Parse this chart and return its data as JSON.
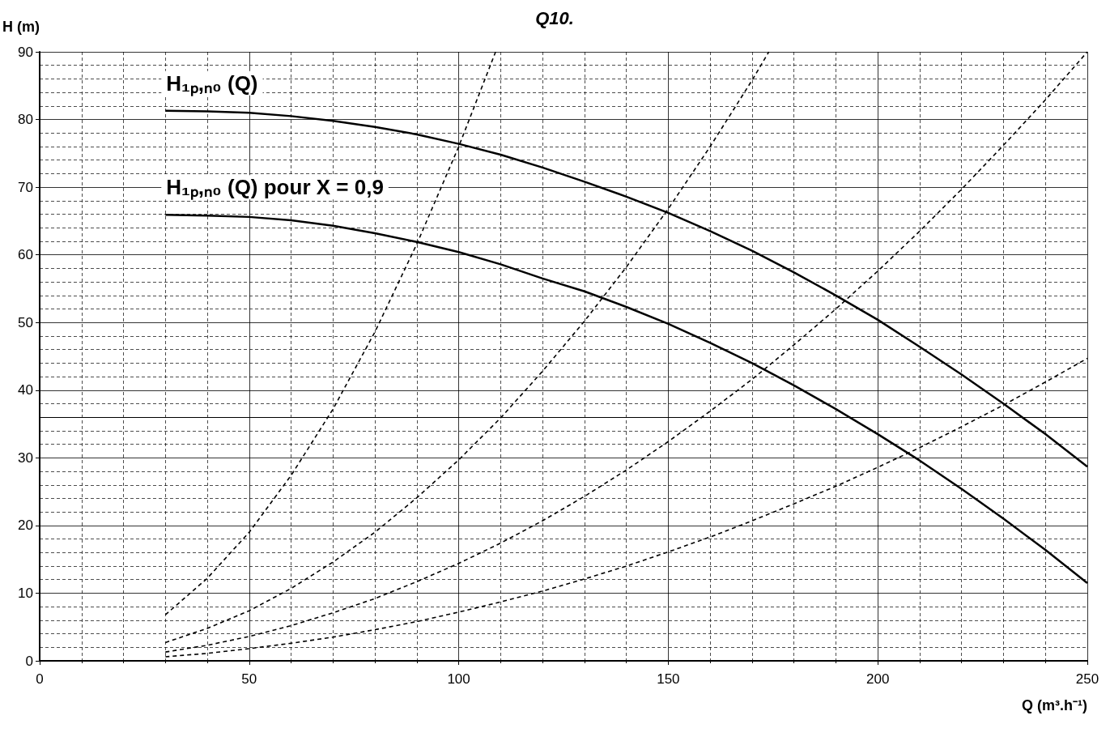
{
  "chart_data": {
    "type": "line",
    "title": "Q10.",
    "xlabel": "Q (m³.h⁻¹)",
    "ylabel": "H (m)",
    "xlim": [
      0,
      250
    ],
    "xticks": [
      0,
      50,
      100,
      150,
      200,
      250
    ],
    "ylim": [
      0,
      90
    ],
    "yticks": [
      0,
      10,
      20,
      30,
      40,
      50,
      60,
      70,
      80,
      90
    ],
    "grid": true,
    "marker": "none",
    "ref_lines": [
      {
        "axis": "y",
        "value": 36,
        "color": "#000000",
        "line_style": "solid"
      }
    ],
    "series": [
      {
        "name": "H₁ₚ,ₙ₀ (Q)",
        "color": "#000000",
        "line_style": "solid",
        "x": [
          30,
          40,
          50,
          60,
          70,
          80,
          90,
          100,
          110,
          120,
          130,
          140,
          150,
          160,
          170,
          180,
          190,
          200,
          210,
          220,
          230,
          240,
          250
        ],
        "values": [
          81.3,
          81.2,
          81.0,
          80.5,
          79.8,
          78.9,
          77.8,
          76.4,
          74.8,
          72.9,
          70.8,
          68.6,
          66.2,
          63.5,
          60.6,
          57.4,
          54.0,
          50.4,
          46.4,
          42.3,
          38.0,
          33.5,
          28.7
        ]
      },
      {
        "name": "H₁ₚ,ₙ₀ (Q) pour X = 0,9",
        "color": "#000000",
        "line_style": "solid",
        "x": [
          30,
          40,
          50,
          60,
          70,
          80,
          90,
          100,
          110,
          120,
          130,
          140,
          150,
          160,
          170,
          180,
          190,
          200,
          210,
          220,
          230,
          240,
          250
        ],
        "values": [
          65.9,
          65.8,
          65.6,
          65.1,
          64.3,
          63.2,
          61.9,
          60.4,
          58.6,
          56.5,
          54.6,
          52.3,
          49.8,
          47.0,
          44.0,
          40.7,
          37.2,
          33.5,
          29.6,
          25.4,
          21.0,
          16.4,
          11.5
        ]
      },
      {
        "color": "#000000",
        "line_style": "dashed",
        "x": [
          30,
          40,
          50,
          60,
          70,
          80,
          90,
          100,
          108.8
        ],
        "values": [
          6.8,
          12.2,
          19.0,
          27.4,
          37.2,
          48.6,
          61.6,
          76.0,
          90
        ]
      },
      {
        "color": "#000000",
        "line_style": "dashed",
        "x": [
          30,
          40,
          50,
          60,
          70,
          80,
          90,
          100,
          110,
          120,
          130,
          140,
          150,
          160,
          170,
          174
        ],
        "values": [
          2.7,
          4.8,
          7.4,
          10.7,
          14.6,
          19.0,
          24.1,
          29.7,
          35.9,
          42.8,
          50.2,
          58.2,
          66.8,
          76.0,
          85.8,
          90
        ]
      },
      {
        "color": "#000000",
        "line_style": "dashed",
        "x": [
          30,
          40,
          50,
          60,
          70,
          80,
          90,
          100,
          110,
          120,
          130,
          140,
          150,
          160,
          170,
          180,
          190,
          200,
          210,
          220,
          230,
          240,
          250
        ],
        "values": [
          1.3,
          2.3,
          3.6,
          5.2,
          7.1,
          9.2,
          11.7,
          14.4,
          17.4,
          20.7,
          24.3,
          28.2,
          32.4,
          36.9,
          41.6,
          46.7,
          52.0,
          57.6,
          63.5,
          69.7,
          76.2,
          82.9,
          90
        ]
      },
      {
        "color": "#000000",
        "line_style": "dashed",
        "x": [
          30,
          40,
          50,
          60,
          70,
          80,
          90,
          100,
          110,
          120,
          130,
          140,
          150,
          160,
          170,
          180,
          190,
          200,
          210,
          220,
          230,
          240,
          250
        ],
        "values": [
          0.6,
          1.1,
          1.8,
          2.6,
          3.5,
          4.6,
          5.8,
          7.2,
          8.7,
          10.3,
          12.1,
          14.0,
          16.1,
          18.3,
          20.7,
          23.2,
          25.8,
          28.6,
          31.5,
          34.6,
          37.8,
          41.2,
          44.7
        ]
      }
    ]
  }
}
